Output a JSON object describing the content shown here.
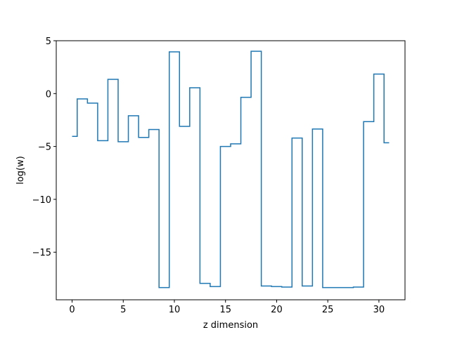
{
  "chart_data": {
    "type": "line",
    "drawstyle": "steps-mid",
    "xlabel": "z dimension",
    "ylabel": "log(w)",
    "xlim": [
      -1.55,
      32.55
    ],
    "ylim": [
      -19.5,
      5.0
    ],
    "xticks": [
      0,
      5,
      10,
      15,
      20,
      25,
      30
    ],
    "yticks": [
      -15,
      -10,
      -5,
      0,
      5
    ],
    "grid": false,
    "series": [
      {
        "color": "#1f77b4",
        "x": [
          0,
          1,
          2,
          3,
          4,
          5,
          6,
          7,
          8,
          9,
          10,
          11,
          12,
          13,
          14,
          15,
          16,
          17,
          18,
          19,
          20,
          21,
          22,
          23,
          24,
          25,
          26,
          27,
          28,
          29,
          30,
          31
        ],
        "y": [
          -4.05,
          -0.5,
          -0.9,
          -4.45,
          1.35,
          -4.55,
          -2.1,
          -4.15,
          -3.4,
          -18.35,
          3.95,
          -3.1,
          0.55,
          -17.95,
          -18.25,
          -5.0,
          -4.75,
          -0.35,
          4.0,
          -18.2,
          -18.25,
          -18.3,
          -4.2,
          -18.2,
          -3.35,
          -18.35,
          -18.35,
          -18.35,
          -18.3,
          -2.65,
          1.85,
          -4.65
        ]
      }
    ]
  }
}
